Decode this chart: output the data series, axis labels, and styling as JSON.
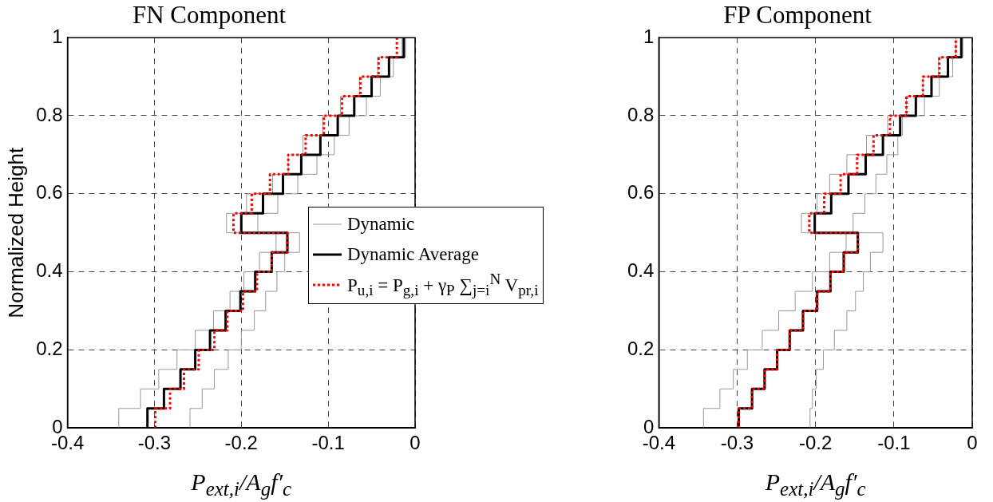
{
  "chart_data": [
    {
      "type": "line",
      "title": "FN Component",
      "xlabel": "P$_{ext,i}$/A$_{g}$f′$_{c}$",
      "ylabel": "Normalized Height",
      "xlim": [
        -0.4,
        0
      ],
      "xticks": [
        -0.4,
        -0.3,
        -0.2,
        -0.1,
        0
      ],
      "ylim": [
        0,
        1
      ],
      "yticks": [
        0,
        0.2,
        0.4,
        0.6,
        0.8,
        1
      ],
      "grid": true,
      "legend": "right",
      "marker": "none",
      "series": [
        {
          "name": "Dynamic",
          "color": "#999999",
          "line_style": "solid",
          "x": [
            -0.341,
            -0.341,
            -0.316,
            -0.316,
            -0.295,
            -0.295,
            -0.274,
            -0.274,
            -0.253,
            -0.253,
            -0.232,
            -0.232,
            -0.213,
            -0.213,
            -0.197,
            -0.197,
            -0.179,
            -0.179,
            -0.16,
            -0.16,
            -0.217,
            -0.217,
            -0.194,
            -0.194,
            -0.164,
            -0.164,
            -0.146,
            -0.146,
            -0.129,
            -0.129,
            -0.106,
            -0.106,
            -0.086,
            -0.086,
            -0.064,
            -0.064,
            -0.043,
            -0.043,
            -0.015,
            -0.015
          ],
          "values": [
            0,
            0.05,
            0.05,
            0.1,
            0.1,
            0.15,
            0.15,
            0.2,
            0.2,
            0.25,
            0.25,
            0.3,
            0.3,
            0.35,
            0.35,
            0.4,
            0.4,
            0.45,
            0.45,
            0.5,
            0.5,
            0.55,
            0.55,
            0.6,
            0.6,
            0.65,
            0.65,
            0.7,
            0.7,
            0.75,
            0.75,
            0.8,
            0.8,
            0.85,
            0.85,
            0.9,
            0.9,
            0.95,
            0.95,
            1
          ]
        },
        {
          "color": "#999999",
          "line_style": "solid",
          "x": [
            -0.259,
            -0.259,
            -0.245,
            -0.245,
            -0.231,
            -0.231,
            -0.215,
            -0.215,
            -0.2,
            -0.2,
            -0.185,
            -0.185,
            -0.172,
            -0.172,
            -0.159,
            -0.159,
            -0.15,
            -0.15,
            -0.133,
            -0.133,
            -0.181,
            -0.181,
            -0.158,
            -0.158,
            -0.135,
            -0.135,
            -0.113,
            -0.113,
            -0.093,
            -0.093,
            -0.076,
            -0.076,
            -0.056,
            -0.056,
            -0.04,
            -0.04,
            -0.025,
            -0.025,
            -0.011,
            -0.011
          ],
          "values": [
            0,
            0.05,
            0.05,
            0.1,
            0.1,
            0.15,
            0.15,
            0.2,
            0.2,
            0.25,
            0.25,
            0.3,
            0.3,
            0.35,
            0.35,
            0.4,
            0.4,
            0.45,
            0.45,
            0.5,
            0.5,
            0.55,
            0.55,
            0.6,
            0.6,
            0.65,
            0.65,
            0.7,
            0.7,
            0.75,
            0.75,
            0.8,
            0.8,
            0.85,
            0.85,
            0.9,
            0.9,
            0.95,
            0.95,
            1
          ]
        },
        {
          "name": "Dynamic Average",
          "color": "#000000",
          "line_style": "solid",
          "x": [
            -0.308,
            -0.308,
            -0.289,
            -0.289,
            -0.27,
            -0.27,
            -0.253,
            -0.253,
            -0.236,
            -0.236,
            -0.218,
            -0.218,
            -0.201,
            -0.201,
            -0.184,
            -0.184,
            -0.165,
            -0.165,
            -0.147,
            -0.147,
            -0.2,
            -0.2,
            -0.175,
            -0.175,
            -0.152,
            -0.152,
            -0.131,
            -0.131,
            -0.109,
            -0.109,
            -0.089,
            -0.089,
            -0.07,
            -0.07,
            -0.05,
            -0.05,
            -0.03,
            -0.03,
            -0.013,
            -0.013
          ],
          "values": [
            0,
            0.05,
            0.05,
            0.1,
            0.1,
            0.15,
            0.15,
            0.2,
            0.2,
            0.25,
            0.25,
            0.3,
            0.3,
            0.35,
            0.35,
            0.4,
            0.4,
            0.45,
            0.45,
            0.5,
            0.5,
            0.55,
            0.55,
            0.6,
            0.6,
            0.65,
            0.65,
            0.7,
            0.7,
            0.75,
            0.75,
            0.8,
            0.8,
            0.85,
            0.85,
            0.9,
            0.9,
            0.95,
            0.95,
            1
          ]
        },
        {
          "name": "P$_{u,i}$ = P$_{g,i}$ + γ$_{P}$ ∑$_{j=i}$$^{N}$ V$_{pr,i}$",
          "color": "#ff0000",
          "line_style": "dotted",
          "x": [
            -0.299,
            -0.299,
            -0.282,
            -0.282,
            -0.266,
            -0.266,
            -0.249,
            -0.249,
            -0.231,
            -0.231,
            -0.216,
            -0.216,
            -0.198,
            -0.198,
            -0.182,
            -0.182,
            -0.165,
            -0.165,
            -0.147,
            -0.147,
            -0.209,
            -0.209,
            -0.188,
            -0.188,
            -0.167,
            -0.167,
            -0.146,
            -0.146,
            -0.126,
            -0.126,
            -0.105,
            -0.105,
            -0.084,
            -0.084,
            -0.063,
            -0.063,
            -0.042,
            -0.042,
            -0.021,
            -0.021
          ],
          "values": [
            0,
            0.05,
            0.05,
            0.1,
            0.1,
            0.15,
            0.15,
            0.2,
            0.2,
            0.25,
            0.25,
            0.3,
            0.3,
            0.35,
            0.35,
            0.4,
            0.4,
            0.45,
            0.45,
            0.5,
            0.5,
            0.55,
            0.55,
            0.6,
            0.6,
            0.65,
            0.65,
            0.7,
            0.7,
            0.75,
            0.75,
            0.8,
            0.8,
            0.85,
            0.85,
            0.9,
            0.9,
            0.95,
            0.95,
            1
          ]
        }
      ]
    },
    {
      "type": "line",
      "title": "FP Component",
      "xlabel": "P$_{ext,i}$/A$_{g}$f′$_{c}$",
      "xlim": [
        -0.4,
        0
      ],
      "xticks": [
        -0.4,
        -0.3,
        -0.2,
        -0.1,
        0
      ],
      "ylim": [
        0,
        1
      ],
      "yticks": [
        0,
        0.2,
        0.4,
        0.6,
        0.8,
        1
      ],
      "grid": true,
      "marker": "none",
      "series": [
        {
          "color": "#999999",
          "line_style": "solid",
          "x": [
            -0.343,
            -0.343,
            -0.322,
            -0.322,
            -0.305,
            -0.305,
            -0.287,
            -0.287,
            -0.268,
            -0.268,
            -0.247,
            -0.247,
            -0.226,
            -0.226,
            -0.204,
            -0.204,
            -0.182,
            -0.182,
            -0.161,
            -0.161,
            -0.218,
            -0.218,
            -0.198,
            -0.198,
            -0.182,
            -0.182,
            -0.16,
            -0.16,
            -0.135,
            -0.135,
            -0.108,
            -0.108,
            -0.084,
            -0.084,
            -0.063,
            -0.063,
            -0.043,
            -0.043,
            -0.021,
            -0.021
          ],
          "values": [
            0,
            0.05,
            0.05,
            0.1,
            0.1,
            0.15,
            0.15,
            0.2,
            0.2,
            0.25,
            0.25,
            0.3,
            0.3,
            0.35,
            0.35,
            0.4,
            0.4,
            0.45,
            0.45,
            0.5,
            0.5,
            0.55,
            0.55,
            0.6,
            0.6,
            0.65,
            0.65,
            0.7,
            0.7,
            0.75,
            0.75,
            0.8,
            0.8,
            0.85,
            0.85,
            0.9,
            0.9,
            0.95,
            0.95,
            1
          ]
        },
        {
          "color": "#999999",
          "line_style": "solid",
          "x": [
            -0.207,
            -0.207,
            -0.204,
            -0.204,
            -0.199,
            -0.199,
            -0.19,
            -0.19,
            -0.176,
            -0.176,
            -0.16,
            -0.16,
            -0.149,
            -0.149,
            -0.139,
            -0.139,
            -0.13,
            -0.13,
            -0.114,
            -0.114,
            -0.152,
            -0.152,
            -0.137,
            -0.137,
            -0.123,
            -0.123,
            -0.109,
            -0.109,
            -0.095,
            -0.095,
            -0.089,
            -0.089,
            -0.061,
            -0.061,
            -0.042,
            -0.042,
            -0.025,
            -0.025,
            -0.012,
            -0.012
          ],
          "values": [
            0,
            0.05,
            0.05,
            0.1,
            0.1,
            0.15,
            0.15,
            0.2,
            0.2,
            0.25,
            0.25,
            0.3,
            0.3,
            0.35,
            0.35,
            0.4,
            0.4,
            0.45,
            0.45,
            0.5,
            0.5,
            0.55,
            0.55,
            0.6,
            0.6,
            0.65,
            0.65,
            0.7,
            0.7,
            0.75,
            0.75,
            0.8,
            0.8,
            0.85,
            0.85,
            0.9,
            0.9,
            0.95,
            0.95,
            1
          ]
        },
        {
          "color": "#000000",
          "line_style": "solid",
          "x": [
            -0.298,
            -0.298,
            -0.281,
            -0.281,
            -0.265,
            -0.265,
            -0.249,
            -0.249,
            -0.233,
            -0.233,
            -0.216,
            -0.216,
            -0.198,
            -0.198,
            -0.181,
            -0.181,
            -0.164,
            -0.164,
            -0.146,
            -0.146,
            -0.201,
            -0.201,
            -0.18,
            -0.18,
            -0.158,
            -0.158,
            -0.136,
            -0.136,
            -0.114,
            -0.114,
            -0.092,
            -0.092,
            -0.072,
            -0.072,
            -0.052,
            -0.052,
            -0.031,
            -0.031,
            -0.014,
            -0.014
          ],
          "values": [
            0,
            0.05,
            0.05,
            0.1,
            0.1,
            0.15,
            0.15,
            0.2,
            0.2,
            0.25,
            0.25,
            0.3,
            0.3,
            0.35,
            0.35,
            0.4,
            0.4,
            0.45,
            0.45,
            0.5,
            0.5,
            0.55,
            0.55,
            0.6,
            0.6,
            0.65,
            0.65,
            0.7,
            0.7,
            0.75,
            0.75,
            0.8,
            0.8,
            0.85,
            0.85,
            0.9,
            0.9,
            0.95,
            0.95,
            1
          ]
        },
        {
          "color": "#ff0000",
          "line_style": "dotted",
          "x": [
            -0.298,
            -0.298,
            -0.281,
            -0.281,
            -0.265,
            -0.265,
            -0.249,
            -0.249,
            -0.233,
            -0.233,
            -0.216,
            -0.216,
            -0.198,
            -0.198,
            -0.181,
            -0.181,
            -0.164,
            -0.164,
            -0.146,
            -0.146,
            -0.208,
            -0.208,
            -0.189,
            -0.189,
            -0.168,
            -0.168,
            -0.147,
            -0.147,
            -0.126,
            -0.126,
            -0.105,
            -0.105,
            -0.084,
            -0.084,
            -0.063,
            -0.063,
            -0.042,
            -0.042,
            -0.021,
            -0.021
          ],
          "values": [
            0,
            0.05,
            0.05,
            0.1,
            0.1,
            0.15,
            0.15,
            0.2,
            0.2,
            0.25,
            0.25,
            0.3,
            0.3,
            0.35,
            0.35,
            0.4,
            0.4,
            0.45,
            0.45,
            0.5,
            0.5,
            0.55,
            0.55,
            0.6,
            0.6,
            0.65,
            0.65,
            0.7,
            0.7,
            0.75,
            0.75,
            0.8,
            0.8,
            0.85,
            0.85,
            0.9,
            0.9,
            0.95,
            0.95,
            1
          ]
        }
      ]
    }
  ]
}
